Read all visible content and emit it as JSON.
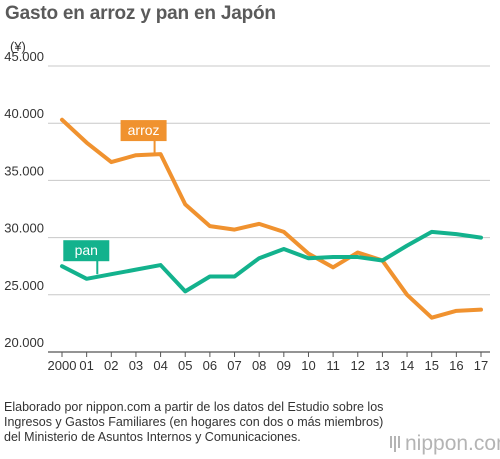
{
  "title": "Gasto en arroz y pan en Japón",
  "unit_label": "(¥)",
  "source": "Elaborado por nippon.com a partir de los datos del Estudio sobre los Ingresos y Gastos Familiares (en hogares con dos o más miembros) del Ministerio de Asuntos Internos y Comunicaciones.",
  "brand": "nippon.com",
  "chart_data": {
    "type": "line",
    "categories": [
      "2000",
      "01",
      "02",
      "03",
      "04",
      "05",
      "06",
      "07",
      "08",
      "09",
      "10",
      "11",
      "12",
      "13",
      "14",
      "15",
      "16",
      "17"
    ],
    "ylim": [
      20000,
      45000
    ],
    "yticks": [
      20000,
      25000,
      30000,
      35000,
      40000,
      45000
    ],
    "ytick_labels": [
      "20.000",
      "25.000",
      "30.000",
      "35.000",
      "40.000",
      "45.000"
    ],
    "grid": true,
    "series": [
      {
        "name": "arroz",
        "color": "#f0922f",
        "values": [
          40300,
          38300,
          36600,
          37200,
          37300,
          32900,
          31000,
          30700,
          31200,
          30500,
          28600,
          27400,
          28700,
          28000,
          25000,
          23000,
          23600,
          23700
        ]
      },
      {
        "name": "pan",
        "color": "#13b28d",
        "values": [
          27500,
          26400,
          26800,
          27200,
          27600,
          25300,
          26600,
          26600,
          28200,
          29000,
          28200,
          28300,
          28300,
          28000,
          29300,
          30500,
          30300,
          30000
        ]
      }
    ]
  }
}
